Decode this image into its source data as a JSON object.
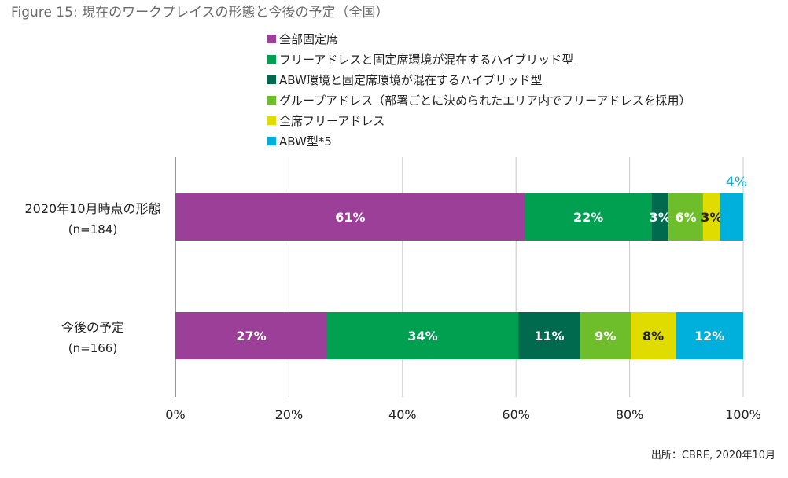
{
  "title": "Figure 15: 現在のワークプレイスの形態と今後の予定（全国）",
  "source": "出所：CBRE, 2020年10月",
  "chart_data": {
    "type": "bar",
    "orientation": "horizontal",
    "stacked": true,
    "title": "Figure 15: 現在のワークプレイスの形態と今後の予定（全国）",
    "legend_position": "top-right",
    "series": [
      {
        "name": "全部固定席",
        "color": "#9b3f98",
        "label_color": "#ffffff"
      },
      {
        "name": "フリーアドレスと固定席環境が混在するハイブリッド型",
        "color": "#00a051",
        "label_color": "#ffffff"
      },
      {
        "name": "ABW環境と固定席環境が混在するハイブリッド型",
        "color": "#006a4e",
        "label_color": "#ffffff"
      },
      {
        "name": "グループアドレス（部署ごとに決められたエリア内でフリーアドレスを採用）",
        "color": "#6ebd2b",
        "label_color": "#ffffff"
      },
      {
        "name": "全席フリーアドレス",
        "color": "#e1dc00",
        "label_color": "#222222"
      },
      {
        "name": "ABW型*5",
        "color": "#00b0dc",
        "label_color": "#ffffff"
      }
    ],
    "categories": [
      {
        "label": "2020年10月時点の形態",
        "n": "(n=184)",
        "values": [
          61,
          22,
          3,
          6,
          3,
          4
        ],
        "labels": [
          "61%",
          "22%",
          "3%",
          "6%",
          "3%",
          "4%"
        ]
      },
      {
        "label": "今後の予定",
        "n": "(n=166)",
        "values": [
          27,
          34,
          11,
          9,
          8,
          12
        ],
        "labels": [
          "27%",
          "34%",
          "11%",
          "9%",
          "8%",
          "12%"
        ]
      }
    ],
    "xlim": [
      0,
      100
    ],
    "xticks": [
      "0%",
      "20%",
      "40%",
      "60%",
      "80%",
      "100%"
    ],
    "grid": true
  }
}
